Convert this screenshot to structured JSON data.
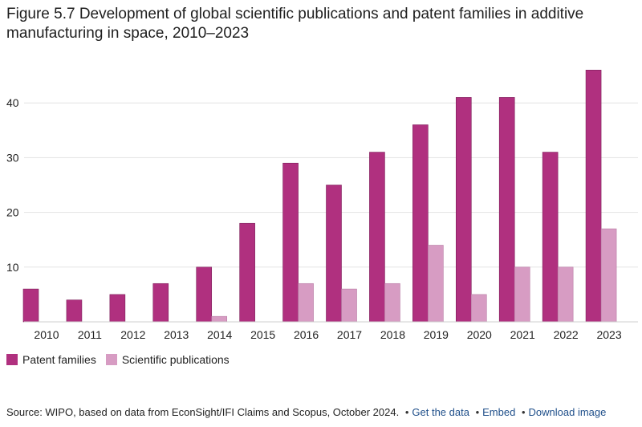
{
  "chart_data": {
    "type": "bar",
    "title": "Figure 5.7 Development of global scientific publications and patent families in additive manufacturing in space, 2010–2023",
    "categories": [
      "2010",
      "2011",
      "2012",
      "2013",
      "2014",
      "2015",
      "2016",
      "2017",
      "2018",
      "2019",
      "2020",
      "2021",
      "2022",
      "2023"
    ],
    "series": [
      {
        "name": "Patent families",
        "color": "#b0307f",
        "values": [
          6,
          4,
          5,
          7,
          10,
          18,
          29,
          25,
          31,
          36,
          41,
          41,
          31,
          46
        ]
      },
      {
        "name": "Scientific publications",
        "color": "#d79cc3",
        "values": [
          0,
          0,
          0,
          0,
          1,
          0,
          7,
          6,
          7,
          14,
          5,
          10,
          10,
          17
        ]
      }
    ],
    "y_ticks": [
      10,
      20,
      30,
      40
    ],
    "ylim": [
      0,
      50
    ],
    "xlabel": "",
    "ylabel": "",
    "grid": true,
    "legend_position": "bottom-left"
  },
  "footer": {
    "source": "Source: WIPO, based on data from EconSight/IFI Claims and Scopus, October 2024.",
    "bullet": "•",
    "link_get_data": "Get the data",
    "link_embed": "Embed",
    "link_download": "Download image"
  }
}
